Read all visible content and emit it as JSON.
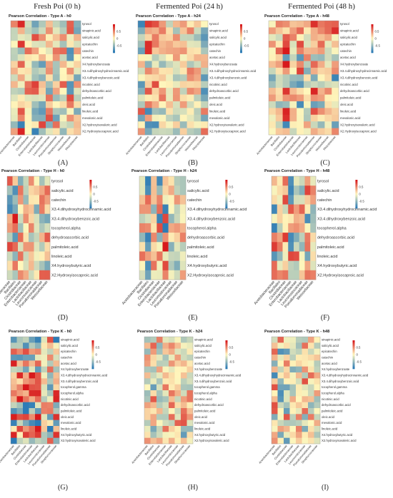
{
  "columns": [
    "Fresh Poi (0 h)",
    "Fermented Poi (24 h)",
    "Fermented Poi (48 h)"
  ],
  "colors": {
    "high": "#d7191c",
    "mid": "#fff7bc",
    "low": "#2c7bb6"
  },
  "colorbar_ticks": [
    "0.5",
    "0",
    "-0.5"
  ],
  "type_a_rows": [
    "tyrosol",
    "sinapinic.acid",
    "salicylic.acid",
    "epicatechin",
    "catechin",
    "acetac.acid",
    "X4.hydroxybenzoate",
    "X3.4.dihydroxyhydrocinnamic.acid",
    "X3.4.dihydroxybenzoic.acid",
    "nicotinic.acid",
    "dehydroascorbic.acid",
    "palmitoleic.acid",
    "oleic.acid",
    "linoleic.acid",
    "mevalonic.acid",
    "X2.hydroxyisovaleric.acid",
    "X2.Hydroxyisocaproic.acid"
  ],
  "type_a_bacteria": [
    "Acetobacteraceae",
    "Bacillales",
    "Clostridiaceae",
    "Enterobacteriaceae",
    "Lactobacillaceae",
    "Leuconostocaceae",
    "Pseudomonadaceae",
    "Streptococcaceae",
    "Weissellaceae",
    "Rhizobiaceae"
  ],
  "type_h_rows": [
    "tyrosol",
    "salicylic.acid",
    "catechin",
    "X3.4.dihydroxyhydrocinnamic.acid",
    "X3.4.dihydroxybenzoic.acid",
    "tocopherol.alpha",
    "dehydroascorbic.acid",
    "palmitoleic.acid",
    "linoleic.acid",
    "X4.hydroxybutyric.acid",
    "X2.Hydroxyisocaproic.acid"
  ],
  "type_h_bacteria": [
    "Acetobacteraceae",
    "Bacillales",
    "Clostridiaceae",
    "Enterobacteriaceae",
    "Lactobacillaceae",
    "Leuconostocaceae",
    "Pseudomonadaceae",
    "Weissellaceae"
  ],
  "type_k_rows": [
    "sinapinic.acid",
    "salicylic.acid",
    "epicatechin",
    "catechin",
    "acetac.acid",
    "X4.hydroxybenzoate",
    "X3.4.dihydroxyhydrocinnamic.acid",
    "X3.4.dihydroxybenzoic.acid",
    "tocopherol.gamma",
    "tocopherol.alpha",
    "nicotinic.acid",
    "dehydroascorbic.acid",
    "palmitoleic.acid",
    "oleic.acid",
    "mevalonic.acid",
    "linoleic.acid",
    "X4.hydroxybutyric.acid",
    "X2.hydroxyisovaleric.acid"
  ],
  "type_k_bacteria": [
    "Acetobacteraceae",
    "Bacillales",
    "Clostridiaceae",
    "Enterobacteriaceae",
    "Lactobacillaceae",
    "Leuconostocaceae",
    "Pseudomonadaceae",
    "Streptococcaceae"
  ],
  "chart_data": [
    {
      "type": "heatmap",
      "letter": "(A)",
      "title": "Pearson Correlation - Type A - h0",
      "rows_key": "type_a_rows",
      "cols_key": "type_a_bacteria",
      "seed": 11
    },
    {
      "type": "heatmap",
      "letter": "(B)",
      "title": "Pearson Correlation - Type A - h24",
      "rows_key": "type_a_rows",
      "cols_key": "type_a_bacteria",
      "seed": 23
    },
    {
      "type": "heatmap",
      "letter": "(C)",
      "title": "Pearson Correlation - Type A - h48",
      "rows_key": "type_a_rows",
      "cols_key": "type_a_bacteria",
      "seed": 37
    },
    {
      "type": "heatmap",
      "letter": "(D)",
      "title": "Pearson Correlation - Type H - h0",
      "rows_key": "type_h_rows",
      "cols_key": "type_h_bacteria",
      "seed": 41
    },
    {
      "type": "heatmap",
      "letter": "(E)",
      "title": "Pearson Correlation - Type H - h24",
      "rows_key": "type_h_rows",
      "cols_key": "type_h_bacteria",
      "seed": 53
    },
    {
      "type": "heatmap",
      "letter": "(F)",
      "title": "Pearson Correlation - Type H - h48",
      "rows_key": "type_h_rows",
      "cols_key": "type_h_bacteria",
      "seed": 67
    },
    {
      "type": "heatmap",
      "letter": "(G)",
      "title": "Pearson Correlation - Type K - h0",
      "rows_key": "type_k_rows",
      "cols_key": "type_k_bacteria",
      "seed": 71
    },
    {
      "type": "heatmap",
      "letter": "(H)",
      "title": "Pearson Correlation - Type K - h24",
      "rows_key": "type_k_rows",
      "cols_key": "type_k_bacteria",
      "seed": 83
    },
    {
      "type": "heatmap",
      "letter": "(I)",
      "title": "Pearson Correlation - Type K - h48",
      "rows_key": "type_k_rows",
      "cols_key": "type_k_bacteria",
      "seed": 97
    }
  ]
}
